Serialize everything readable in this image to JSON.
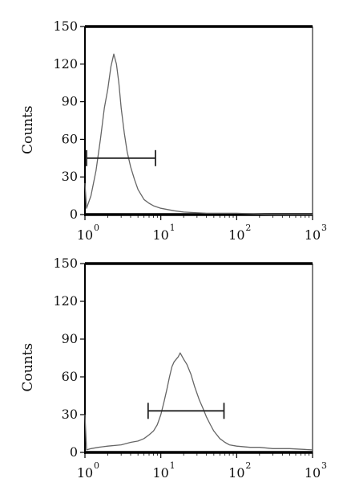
{
  "chart_data": [
    {
      "type": "line",
      "subtype": "histogram",
      "ylabel": "Counts",
      "xlabel": "",
      "x_scale": "log",
      "xlim": [
        1,
        1000
      ],
      "ylim": [
        0,
        150
      ],
      "y_ticks": [
        "0",
        "30",
        "60",
        "90",
        "120",
        "150"
      ],
      "x_ticks": [
        {
          "base": "10",
          "exp": "0"
        },
        {
          "base": "10",
          "exp": "1"
        },
        {
          "base": "10",
          "exp": "2"
        },
        {
          "base": "10",
          "exp": "3"
        }
      ],
      "series": [
        {
          "x": [
            1.0,
            1.05,
            1.2,
            1.4,
            1.6,
            1.8,
            2.0,
            2.2,
            2.4,
            2.6,
            2.8,
            3.0,
            3.3,
            3.6,
            4.0,
            4.5,
            5.0,
            6.0,
            7.0,
            8.0,
            10,
            15,
            20,
            40,
            100,
            300,
            1000
          ],
          "y": [
            25,
            5,
            15,
            35,
            60,
            85,
            100,
            118,
            128,
            120,
            105,
            85,
            65,
            50,
            38,
            28,
            20,
            12,
            9,
            7,
            5,
            3,
            2,
            1,
            1,
            0,
            0
          ]
        }
      ],
      "gate": {
        "x_start": 1.05,
        "x_end": 8.5,
        "y": 45
      },
      "grid": false,
      "color": "#666666"
    },
    {
      "type": "line",
      "subtype": "histogram",
      "ylabel": "Counts",
      "xlabel": "",
      "x_scale": "log",
      "xlim": [
        1,
        1000
      ],
      "ylim": [
        0,
        150
      ],
      "y_ticks": [
        "0",
        "30",
        "60",
        "90",
        "120",
        "150"
      ],
      "x_ticks": [
        {
          "base": "10",
          "exp": "0"
        },
        {
          "base": "10",
          "exp": "1"
        },
        {
          "base": "10",
          "exp": "2"
        },
        {
          "base": "10",
          "exp": "3"
        }
      ],
      "series": [
        {
          "x": [
            1.0,
            1.05,
            1.2,
            1.5,
            2,
            3,
            4,
            5,
            6,
            7,
            8,
            9,
            10,
            11,
            12,
            13,
            14,
            15,
            17,
            18,
            20,
            22,
            25,
            28,
            32,
            36,
            40,
            45,
            50,
            60,
            70,
            80,
            100,
            150,
            200,
            300,
            500,
            1000
          ],
          "y": [
            30,
            2,
            3,
            4,
            5,
            6,
            8,
            9,
            11,
            14,
            17,
            22,
            30,
            40,
            50,
            60,
            68,
            72,
            76,
            79,
            74,
            70,
            62,
            52,
            42,
            35,
            28,
            22,
            17,
            11,
            8,
            6,
            5,
            4,
            4,
            3,
            3,
            2
          ]
        }
      ],
      "gate": {
        "x_start": 6.8,
        "x_end": 68,
        "y": 33
      },
      "grid": false,
      "color": "#666666"
    }
  ]
}
